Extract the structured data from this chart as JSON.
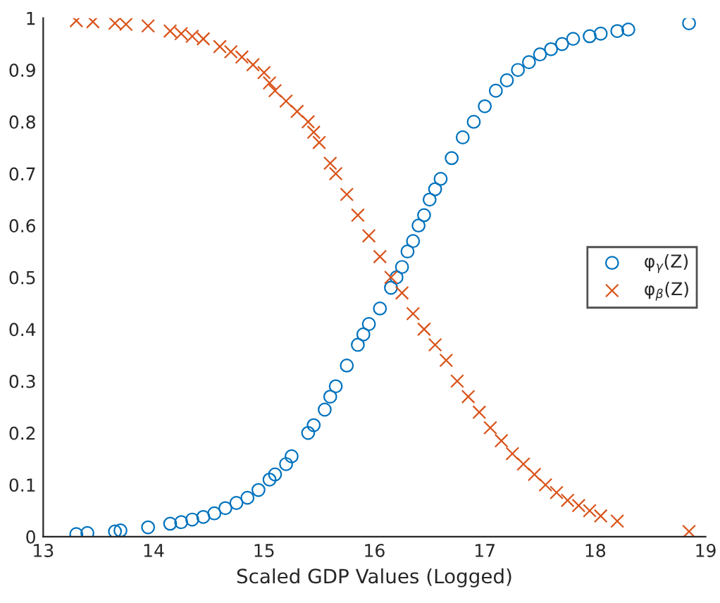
{
  "chart_data": {
    "type": "scatter",
    "xlabel": "Scaled GDP Values (Logged)",
    "xlim": [
      13,
      19
    ],
    "xticks": [
      13,
      14,
      15,
      16,
      17,
      18,
      19
    ],
    "ylim": [
      0,
      1
    ],
    "yticks": [
      0,
      0.1,
      0.2,
      0.3,
      0.4,
      0.5,
      0.6,
      0.7,
      0.8,
      0.9,
      1
    ],
    "legend": "right",
    "grid": false,
    "series": [
      {
        "name": "φ$_{γ}$(Z)",
        "color": "#0072bd",
        "marker": "circle",
        "x": [
          13.3,
          13.4,
          13.65,
          13.7,
          13.95,
          14.15,
          14.25,
          14.35,
          14.45,
          14.55,
          14.65,
          14.75,
          14.85,
          14.95,
          15.05,
          15.1,
          15.2,
          15.25,
          15.4,
          15.45,
          15.55,
          15.6,
          15.65,
          15.75,
          15.85,
          15.9,
          15.95,
          16.05,
          16.15,
          16.2,
          16.25,
          16.3,
          16.35,
          16.4,
          16.45,
          16.5,
          16.55,
          16.6,
          16.7,
          16.8,
          16.9,
          17.0,
          17.1,
          17.2,
          17.3,
          17.4,
          17.5,
          17.6,
          17.7,
          17.8,
          17.95,
          18.05,
          18.2,
          18.3,
          18.85
        ],
        "values": [
          0.005,
          0.007,
          0.01,
          0.012,
          0.018,
          0.025,
          0.028,
          0.033,
          0.038,
          0.045,
          0.055,
          0.065,
          0.075,
          0.09,
          0.11,
          0.12,
          0.14,
          0.155,
          0.2,
          0.215,
          0.245,
          0.27,
          0.29,
          0.33,
          0.37,
          0.39,
          0.41,
          0.44,
          0.48,
          0.5,
          0.52,
          0.55,
          0.57,
          0.6,
          0.62,
          0.65,
          0.67,
          0.69,
          0.73,
          0.77,
          0.8,
          0.83,
          0.86,
          0.88,
          0.9,
          0.915,
          0.93,
          0.94,
          0.95,
          0.96,
          0.965,
          0.97,
          0.975,
          0.978,
          0.99
        ]
      },
      {
        "name": "φ$_{β}$(Z)",
        "color": "#d95319",
        "marker": "cross",
        "x": [
          13.3,
          13.45,
          13.65,
          13.75,
          13.95,
          14.15,
          14.25,
          14.35,
          14.45,
          14.6,
          14.7,
          14.8,
          14.9,
          15.0,
          15.05,
          15.1,
          15.2,
          15.3,
          15.4,
          15.45,
          15.5,
          15.6,
          15.65,
          15.75,
          15.85,
          15.95,
          16.05,
          16.15,
          16.25,
          16.35,
          16.45,
          16.55,
          16.65,
          16.75,
          16.85,
          16.95,
          17.05,
          17.15,
          17.25,
          17.35,
          17.45,
          17.55,
          17.65,
          17.75,
          17.85,
          17.95,
          18.05,
          18.2,
          18.85
        ],
        "values": [
          0.995,
          0.993,
          0.99,
          0.988,
          0.985,
          0.975,
          0.97,
          0.965,
          0.96,
          0.945,
          0.935,
          0.925,
          0.91,
          0.895,
          0.875,
          0.86,
          0.84,
          0.82,
          0.8,
          0.78,
          0.76,
          0.72,
          0.7,
          0.66,
          0.62,
          0.58,
          0.54,
          0.5,
          0.47,
          0.43,
          0.4,
          0.37,
          0.34,
          0.3,
          0.27,
          0.24,
          0.21,
          0.185,
          0.16,
          0.14,
          0.12,
          0.1,
          0.085,
          0.07,
          0.06,
          0.05,
          0.04,
          0.03,
          0.01
        ]
      }
    ]
  }
}
